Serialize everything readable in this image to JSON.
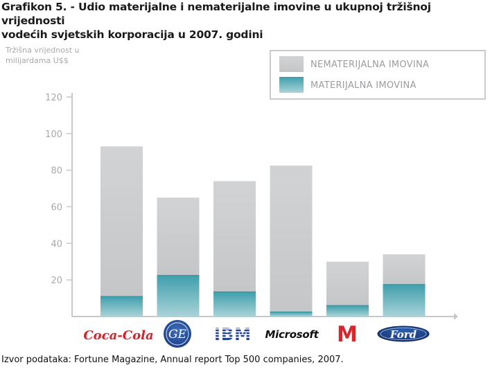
{
  "title_line1": "Grafikon 5. - Udio materijalne i nematerijalne imovine u ukupnoj tržišnoj vrijednosti",
  "title_line2": "vodećih svjetskih korporacija u 2007. godini",
  "source": "Izvor podataka: Fortune Magazine, Annual report Top 500 companies, 2007.",
  "colors": {
    "intangible": "#c6c8ca",
    "tangible": "#49a8b4",
    "axis": "#c7c8ca"
  },
  "chart_data": {
    "type": "bar",
    "stacked": true,
    "title": "Udio materijalne i nematerijalne imovine u ukupnoj tržišnoj vrijednosti vodećih svjetskih korporacija u 2007. godini",
    "ylabel_line1": "Tržišna vrijednost u",
    "ylabel_line2": "milijardama U$$",
    "ylim": [
      0,
      120
    ],
    "yticks": [
      "20",
      "40",
      "60",
      "80",
      "100",
      "120"
    ],
    "categories": [
      "Coca-Cola",
      "GE",
      "IBM",
      "Microsoft",
      "McDonald's",
      "Ford"
    ],
    "series": [
      {
        "name": "MATERIJALNA IMOVINA",
        "values": [
          11,
          22.5,
          13.5,
          2.5,
          6,
          17.5
        ]
      },
      {
        "name": "NEMATERIJALNA IMOVINA",
        "values": [
          82,
          42.5,
          60.5,
          80,
          24,
          16.5
        ]
      }
    ],
    "totals": [
      93,
      65,
      74,
      82.5,
      30,
      34
    ],
    "legend": [
      "NEMATERIJALNA IMOVINA",
      "MATERIJALNA IMOVINA"
    ],
    "legend_position": "top-right",
    "logos": {
      "coca_cola": "Coca-Cola",
      "ge": "GE",
      "ibm": "IBM",
      "microsoft": "Microsoft",
      "mcdonalds": "M",
      "ford": "Ford"
    }
  }
}
